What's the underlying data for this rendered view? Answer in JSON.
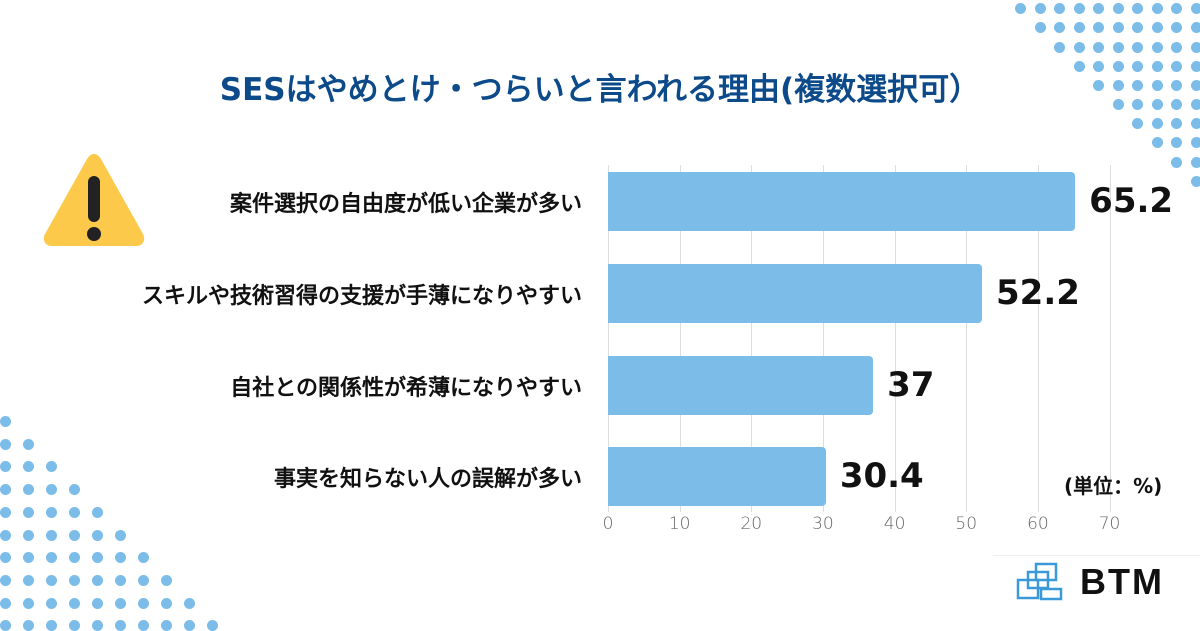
{
  "title": "SESはやめとけ・つらいと言われる理由(複数選択可）",
  "unit_label": "(単位：%)",
  "logo": {
    "text": "BTM"
  },
  "icons": {
    "warning": "warning-triangle-icon",
    "logo": "btm-logo-icon"
  },
  "colors": {
    "title": "#0c4a8a",
    "bar": "#7bbce9",
    "dots": "#7bbce9",
    "warning": "#fcc94b"
  },
  "chart_data": {
    "type": "bar",
    "orientation": "horizontal",
    "title": "SESはやめとけ・つらいと言われる理由(複数選択可）",
    "categories": [
      "案件選択の自由度が低い企業が多い",
      "スキルや技術習得の支援が手薄になりやすい",
      "自社との関係性が希薄になりやすい",
      "事実を知らない人の誤解が多い"
    ],
    "values": [
      65.2,
      52.2,
      37,
      30.4
    ],
    "value_labels": [
      "65.2",
      "52.2",
      "37",
      "30.4"
    ],
    "xlabel": "",
    "ylabel": "",
    "unit": "%",
    "xlim": [
      0,
      70
    ],
    "x_ticks": [
      "0",
      "10",
      "20",
      "30",
      "40",
      "50",
      "60",
      "70"
    ],
    "grid": true,
    "legend": "none"
  }
}
